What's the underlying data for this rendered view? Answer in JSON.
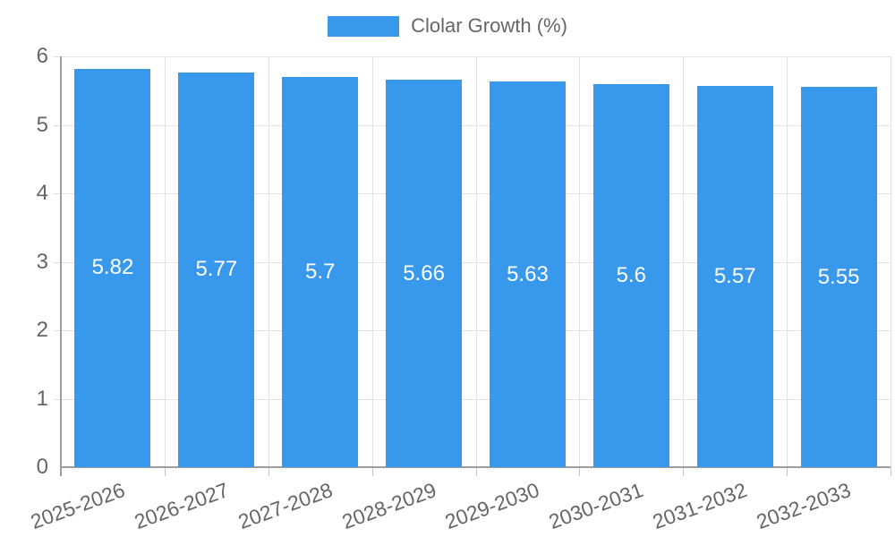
{
  "legend": {
    "label": "Clolar Growth (%)",
    "swatch_color": "#3899EC"
  },
  "chart_data": {
    "type": "bar",
    "title": "",
    "series_name": "Clolar Growth (%)",
    "categories": [
      "2025-2026",
      "2026-2027",
      "2027-2028",
      "2028-2029",
      "2029-2030",
      "2030-2031",
      "2031-2032",
      "2032-2033"
    ],
    "values": [
      5.82,
      5.77,
      5.7,
      5.66,
      5.63,
      5.6,
      5.57,
      5.55
    ],
    "value_labels": [
      "5.82",
      "5.77",
      "5.7",
      "5.66",
      "5.63",
      "5.6",
      "5.57",
      "5.55"
    ],
    "xlabel": "",
    "ylabel": "",
    "ylim": [
      0,
      6
    ],
    "yticks": [
      0,
      1,
      2,
      3,
      4,
      5,
      6
    ],
    "grid": true,
    "legend_position": "top-center",
    "x_label_rotation_deg": -20,
    "colors": {
      "bar": "#3899EC",
      "value_label": "#ffffff",
      "tick_label": "#666666",
      "axis_line": "#9e9e9e",
      "gridline": "#e3e3e3",
      "background": "#ffffff"
    }
  }
}
